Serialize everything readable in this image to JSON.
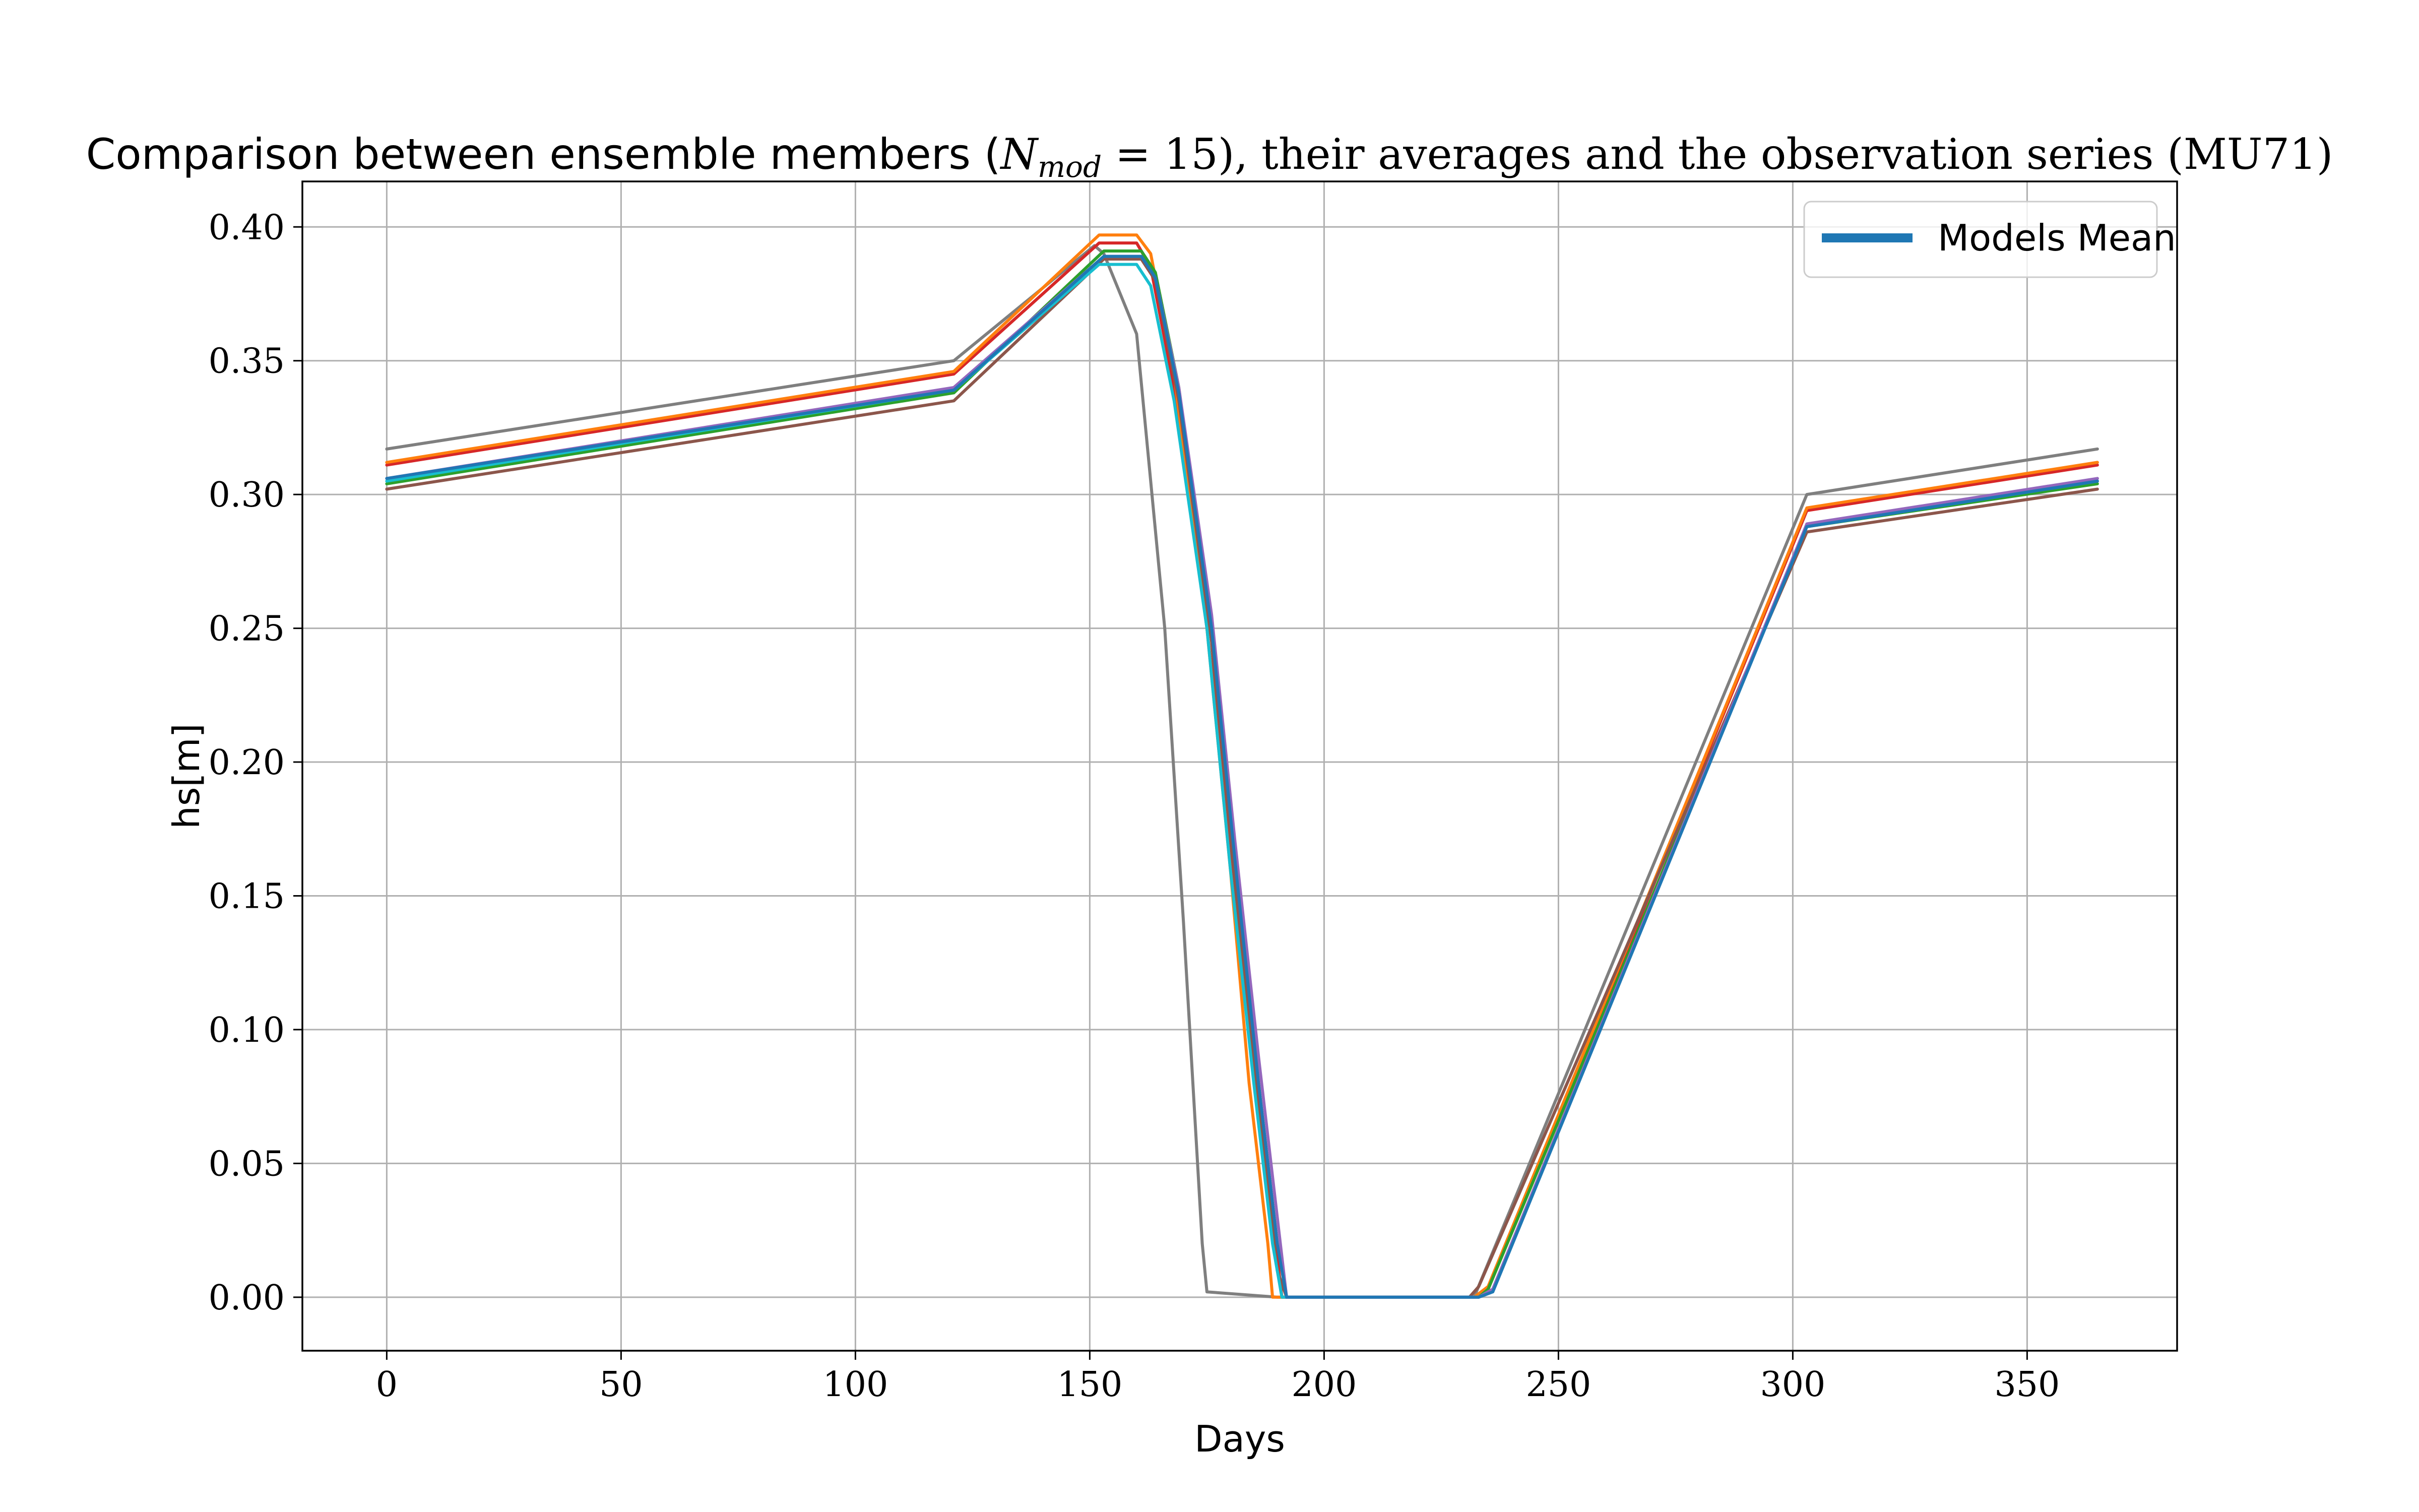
{
  "chart_data": {
    "type": "line",
    "title_parts": [
      "Comparison between ensemble members (",
      "N",
      "mod",
      " = 15), their averages and the observation series (MU71)"
    ],
    "xlabel": "Days",
    "ylabel": "hs[m]",
    "xlim": [
      -18,
      382
    ],
    "ylim": [
      -0.02,
      0.417
    ],
    "xticks": [
      0,
      50,
      100,
      150,
      200,
      250,
      300,
      350
    ],
    "xtick_labels": [
      "0",
      "50",
      "100",
      "150",
      "200",
      "250",
      "300",
      "350"
    ],
    "yticks": [
      0.0,
      0.05,
      0.1,
      0.15,
      0.2,
      0.25,
      0.3,
      0.35,
      0.4
    ],
    "ytick_labels": [
      "0.00",
      "0.05",
      "0.10",
      "0.15",
      "0.20",
      "0.25",
      "0.30",
      "0.35",
      "0.40"
    ],
    "grid": true,
    "legend": {
      "position": "top-right",
      "entries": [
        {
          "name": "Models Mean",
          "color": "#1f77b4"
        }
      ]
    },
    "series": [
      {
        "color": "#7f7f7f",
        "x": [
          0,
          121,
          151,
          153,
          160,
          166,
          170,
          174,
          175,
          190,
          232,
          303,
          365
        ],
        "y": [
          0.317,
          0.35,
          0.393,
          0.39,
          0.36,
          0.25,
          0.14,
          0.02,
          0.002,
          0.0,
          0.0,
          0.3,
          0.317
        ]
      },
      {
        "color": "#d62728",
        "x": [
          0,
          121,
          152,
          160,
          163,
          168,
          175,
          180,
          185,
          189,
          191,
          232,
          235,
          303,
          365
        ],
        "y": [
          0.311,
          0.345,
          0.394,
          0.394,
          0.385,
          0.34,
          0.25,
          0.17,
          0.09,
          0.03,
          0.0,
          0.0,
          0.003,
          0.294,
          0.311
        ]
      },
      {
        "color": "#ff7f0e",
        "x": [
          0,
          121,
          152,
          160,
          163,
          168,
          175,
          180,
          184,
          188,
          189,
          190,
          232,
          235,
          303,
          365
        ],
        "y": [
          0.312,
          0.346,
          0.397,
          0.397,
          0.39,
          0.345,
          0.25,
          0.16,
          0.08,
          0.02,
          0.0,
          0.0,
          0.0,
          0.004,
          0.295,
          0.312
        ]
      },
      {
        "color": "#2ca02c",
        "x": [
          0,
          121,
          153,
          161,
          164,
          169,
          176,
          181,
          186,
          190,
          192,
          233,
          235,
          303,
          365
        ],
        "y": [
          0.304,
          0.338,
          0.391,
          0.391,
          0.383,
          0.34,
          0.25,
          0.16,
          0.08,
          0.02,
          0.0,
          0.0,
          0.003,
          0.288,
          0.304
        ]
      },
      {
        "color": "#8c564b",
        "x": [
          0,
          121,
          153,
          161,
          164,
          169,
          176,
          181,
          186,
          190,
          192,
          231,
          233,
          303,
          365
        ],
        "y": [
          0.302,
          0.335,
          0.388,
          0.388,
          0.38,
          0.335,
          0.245,
          0.155,
          0.07,
          0.01,
          0.0,
          0.0,
          0.004,
          0.286,
          0.302
        ]
      },
      {
        "color": "#17becf",
        "x": [
          0,
          121,
          152,
          160,
          163,
          168,
          175,
          180,
          185,
          189,
          191,
          233,
          236,
          303,
          365
        ],
        "y": [
          0.305,
          0.339,
          0.386,
          0.386,
          0.378,
          0.335,
          0.25,
          0.16,
          0.08,
          0.02,
          0.0,
          0.0,
          0.003,
          0.288,
          0.305
        ]
      },
      {
        "color": "#9467bd",
        "x": [
          0,
          121,
          153,
          161,
          164,
          169,
          176,
          181,
          186,
          190,
          192,
          233,
          236,
          303,
          365
        ],
        "y": [
          0.306,
          0.34,
          0.389,
          0.389,
          0.381,
          0.34,
          0.255,
          0.17,
          0.09,
          0.03,
          0.0,
          0.0,
          0.003,
          0.289,
          0.306
        ]
      },
      {
        "color": "#1f77b4",
        "name": "Models Mean",
        "x": [
          0,
          121,
          153,
          161,
          164,
          169,
          176,
          181,
          186,
          190,
          192,
          233,
          236,
          303,
          365
        ],
        "y": [
          0.306,
          0.339,
          0.389,
          0.389,
          0.381,
          0.338,
          0.25,
          0.163,
          0.08,
          0.02,
          0.0,
          0.0,
          0.002,
          0.288,
          0.305
        ]
      }
    ]
  }
}
